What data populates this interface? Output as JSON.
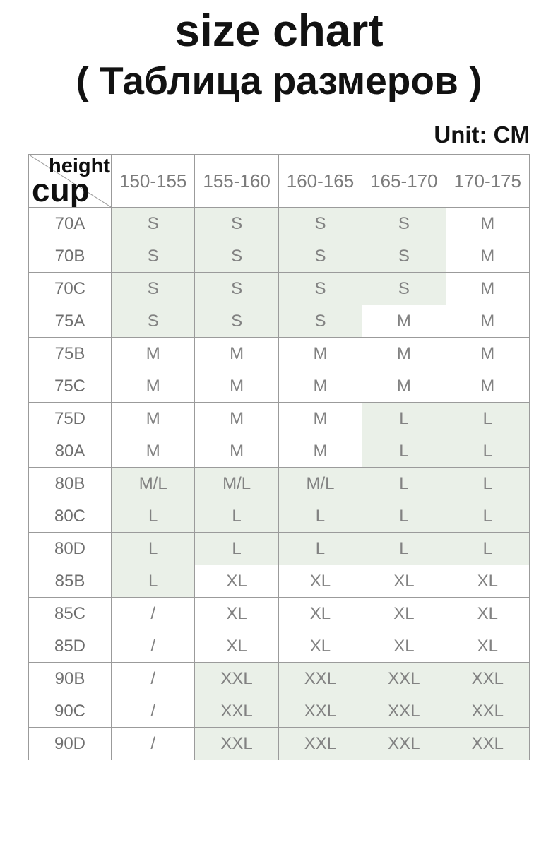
{
  "title": "size chart",
  "subtitle": "( Таблица размеров )",
  "unit_label": "Unit: CM",
  "colors": {
    "highlight_green": "#eaf0e8",
    "border": "#9b9b9b",
    "muted_text": "#828282",
    "heading_text": "#121212"
  },
  "table": {
    "corner": {
      "top_label": "height",
      "bottom_label": "cup"
    },
    "height_columns": [
      "150-155",
      "155-160",
      "160-165",
      "165-170",
      "170-175"
    ],
    "rows": [
      {
        "cup": "70A",
        "cells": [
          {
            "value": "S",
            "highlight": true
          },
          {
            "value": "S",
            "highlight": true
          },
          {
            "value": "S",
            "highlight": true
          },
          {
            "value": "S",
            "highlight": true
          },
          {
            "value": "M",
            "highlight": false
          }
        ]
      },
      {
        "cup": "70B",
        "cells": [
          {
            "value": "S",
            "highlight": true
          },
          {
            "value": "S",
            "highlight": true
          },
          {
            "value": "S",
            "highlight": true
          },
          {
            "value": "S",
            "highlight": true
          },
          {
            "value": "M",
            "highlight": false
          }
        ]
      },
      {
        "cup": "70C",
        "cells": [
          {
            "value": "S",
            "highlight": true
          },
          {
            "value": "S",
            "highlight": true
          },
          {
            "value": "S",
            "highlight": true
          },
          {
            "value": "S",
            "highlight": true
          },
          {
            "value": "M",
            "highlight": false
          }
        ]
      },
      {
        "cup": "75A",
        "cells": [
          {
            "value": "S",
            "highlight": true
          },
          {
            "value": "S",
            "highlight": true
          },
          {
            "value": "S",
            "highlight": true
          },
          {
            "value": "M",
            "highlight": false
          },
          {
            "value": "M",
            "highlight": false
          }
        ]
      },
      {
        "cup": "75B",
        "cells": [
          {
            "value": "M",
            "highlight": false
          },
          {
            "value": "M",
            "highlight": false
          },
          {
            "value": "M",
            "highlight": false
          },
          {
            "value": "M",
            "highlight": false
          },
          {
            "value": "M",
            "highlight": false
          }
        ]
      },
      {
        "cup": "75C",
        "cells": [
          {
            "value": "M",
            "highlight": false
          },
          {
            "value": "M",
            "highlight": false
          },
          {
            "value": "M",
            "highlight": false
          },
          {
            "value": "M",
            "highlight": false
          },
          {
            "value": "M",
            "highlight": false
          }
        ]
      },
      {
        "cup": "75D",
        "cells": [
          {
            "value": "M",
            "highlight": false
          },
          {
            "value": "M",
            "highlight": false
          },
          {
            "value": "M",
            "highlight": false
          },
          {
            "value": "L",
            "highlight": true
          },
          {
            "value": "L",
            "highlight": true
          }
        ]
      },
      {
        "cup": "80A",
        "cells": [
          {
            "value": "M",
            "highlight": false
          },
          {
            "value": "M",
            "highlight": false
          },
          {
            "value": "M",
            "highlight": false
          },
          {
            "value": "L",
            "highlight": true
          },
          {
            "value": "L",
            "highlight": true
          }
        ]
      },
      {
        "cup": "80B",
        "cells": [
          {
            "value": "M/L",
            "highlight": true
          },
          {
            "value": "M/L",
            "highlight": true
          },
          {
            "value": "M/L",
            "highlight": true
          },
          {
            "value": "L",
            "highlight": true
          },
          {
            "value": "L",
            "highlight": true
          }
        ]
      },
      {
        "cup": "80C",
        "cells": [
          {
            "value": "L",
            "highlight": true
          },
          {
            "value": "L",
            "highlight": true
          },
          {
            "value": "L",
            "highlight": true
          },
          {
            "value": "L",
            "highlight": true
          },
          {
            "value": "L",
            "highlight": true
          }
        ]
      },
      {
        "cup": "80D",
        "cells": [
          {
            "value": "L",
            "highlight": true
          },
          {
            "value": "L",
            "highlight": true
          },
          {
            "value": "L",
            "highlight": true
          },
          {
            "value": "L",
            "highlight": true
          },
          {
            "value": "L",
            "highlight": true
          }
        ]
      },
      {
        "cup": "85B",
        "cells": [
          {
            "value": "L",
            "highlight": true
          },
          {
            "value": "XL",
            "highlight": false
          },
          {
            "value": "XL",
            "highlight": false
          },
          {
            "value": "XL",
            "highlight": false
          },
          {
            "value": "XL",
            "highlight": false
          }
        ]
      },
      {
        "cup": "85C",
        "cells": [
          {
            "value": "/",
            "highlight": false
          },
          {
            "value": "XL",
            "highlight": false
          },
          {
            "value": "XL",
            "highlight": false
          },
          {
            "value": "XL",
            "highlight": false
          },
          {
            "value": "XL",
            "highlight": false
          }
        ]
      },
      {
        "cup": "85D",
        "cells": [
          {
            "value": "/",
            "highlight": false
          },
          {
            "value": "XL",
            "highlight": false
          },
          {
            "value": "XL",
            "highlight": false
          },
          {
            "value": "XL",
            "highlight": false
          },
          {
            "value": "XL",
            "highlight": false
          }
        ]
      },
      {
        "cup": "90B",
        "cells": [
          {
            "value": "/",
            "highlight": false
          },
          {
            "value": "XXL",
            "highlight": true
          },
          {
            "value": "XXL",
            "highlight": true
          },
          {
            "value": "XXL",
            "highlight": true
          },
          {
            "value": "XXL",
            "highlight": true
          }
        ]
      },
      {
        "cup": "90C",
        "cells": [
          {
            "value": "/",
            "highlight": false
          },
          {
            "value": "XXL",
            "highlight": true
          },
          {
            "value": "XXL",
            "highlight": true
          },
          {
            "value": "XXL",
            "highlight": true
          },
          {
            "value": "XXL",
            "highlight": true
          }
        ]
      },
      {
        "cup": "90D",
        "cells": [
          {
            "value": "/",
            "highlight": false
          },
          {
            "value": "XXL",
            "highlight": true
          },
          {
            "value": "XXL",
            "highlight": true
          },
          {
            "value": "XXL",
            "highlight": true
          },
          {
            "value": "XXL",
            "highlight": true
          }
        ]
      }
    ]
  }
}
